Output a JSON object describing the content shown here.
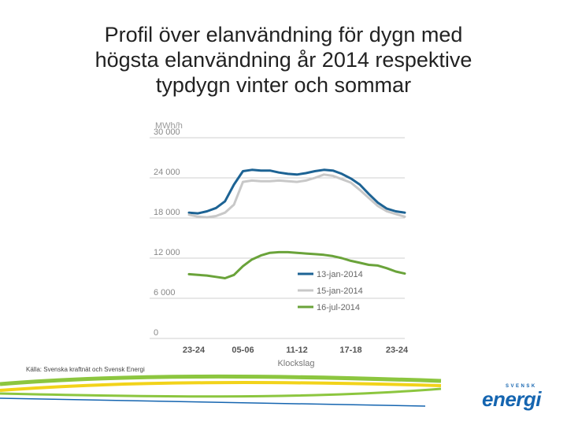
{
  "slide": {
    "title": "Profil över elanvändning för dygn med\nhögsta elanvändning år 2014 respektive\ntypdygn vinter och sommar",
    "source": "Källa: Svenska kraftnät och Svensk Energi",
    "logo_small": "SVENSK",
    "logo_big": "energi"
  },
  "colors": {
    "jan13": "#1d6394",
    "jan15": "#c8c8c8",
    "jul16": "#6aa33a",
    "grid": "#cfcfcf",
    "swoosh_green": "#8cc63f",
    "swoosh_yellow": "#f2d31a",
    "swoosh_blue": "#1565b0"
  },
  "chart_data": {
    "type": "line",
    "ylabel": "MWh/h",
    "xlabel": "Klockslag",
    "ylim": [
      0,
      30000
    ],
    "yticks": [
      0,
      6000,
      12000,
      18000,
      24000,
      30000
    ],
    "ytick_labels": [
      "0",
      "6 000",
      "12 000",
      "18 000",
      "24 000",
      "30 000"
    ],
    "xticks": [
      "23-24",
      "05-06",
      "11-12",
      "17-18",
      "23-24"
    ],
    "x": [
      0,
      1,
      2,
      3,
      4,
      5,
      6,
      7,
      8,
      9,
      10,
      11,
      12,
      13,
      14,
      15,
      16,
      17,
      18,
      19,
      20,
      21,
      22,
      23,
      24
    ],
    "grid": true,
    "legend_position": "bottom-right",
    "series": [
      {
        "name": "13-jan-2014",
        "color_key": "jan13",
        "values": [
          18800,
          18700,
          19000,
          19500,
          20500,
          23000,
          25000,
          25200,
          25100,
          25100,
          24800,
          24600,
          24500,
          24700,
          25000,
          25200,
          25100,
          24600,
          23900,
          23000,
          21600,
          20300,
          19400,
          19000,
          18800
        ]
      },
      {
        "name": "15-jan-2014",
        "color_key": "jan15",
        "values": [
          18500,
          18200,
          18100,
          18300,
          18800,
          20000,
          23400,
          23600,
          23500,
          23500,
          23600,
          23500,
          23400,
          23600,
          24000,
          24500,
          24300,
          23800,
          23300,
          22200,
          21000,
          19800,
          19000,
          18600,
          18200
        ]
      },
      {
        "name": "16-jul-2014",
        "color_key": "jul16",
        "values": [
          9600,
          9500,
          9400,
          9200,
          9000,
          9500,
          10800,
          11800,
          12400,
          12800,
          12900,
          12900,
          12800,
          12700,
          12600,
          12500,
          12300,
          12000,
          11600,
          11300,
          11000,
          10900,
          10500,
          10000,
          9700
        ]
      }
    ]
  }
}
